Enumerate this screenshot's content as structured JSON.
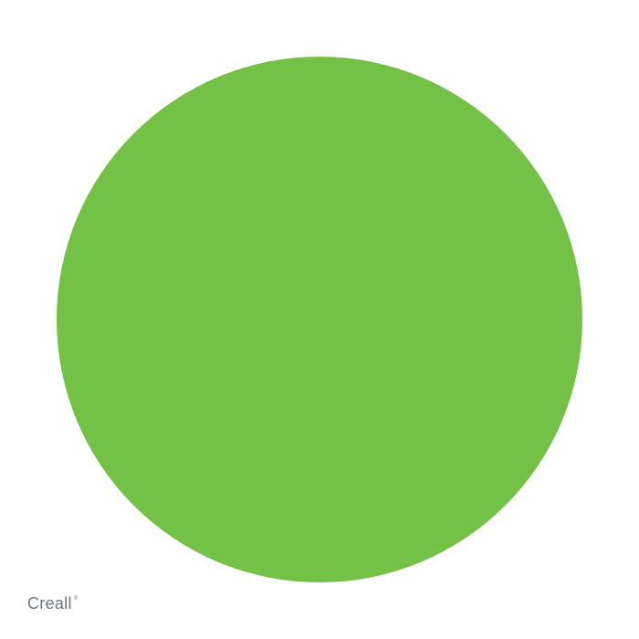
{
  "swatch": {
    "color": "#74c147"
  },
  "logo": {
    "text": "Creall",
    "mark": "®"
  }
}
